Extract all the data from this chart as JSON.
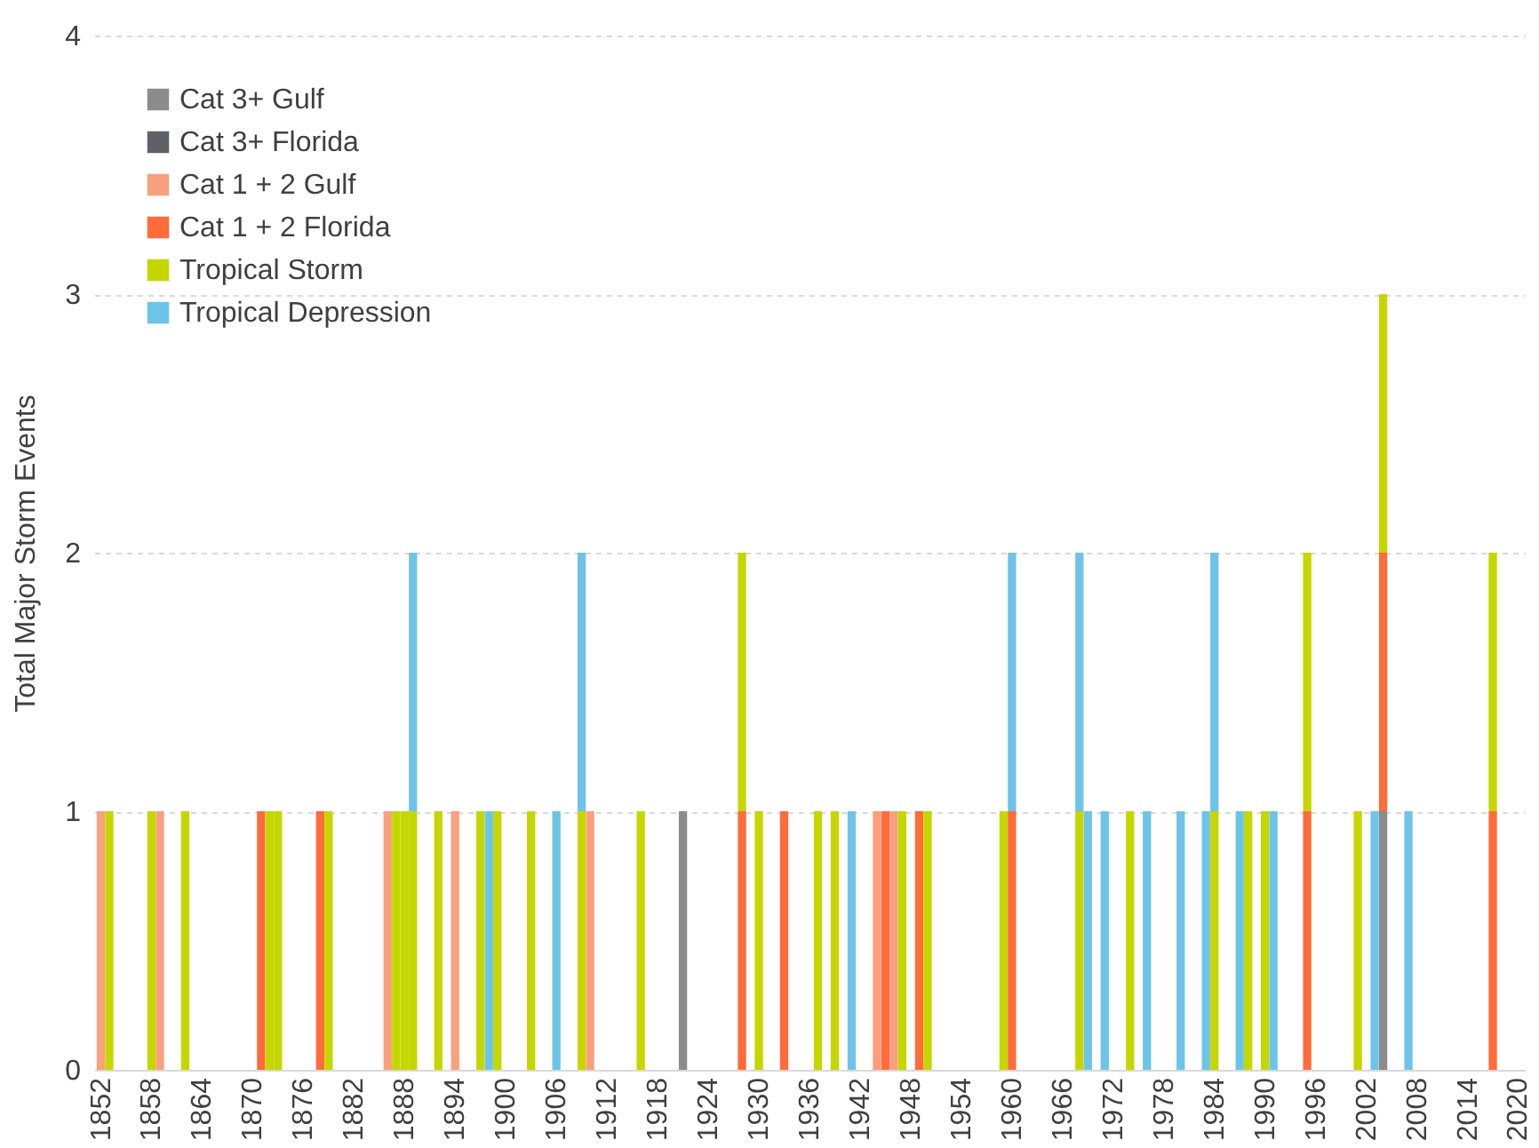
{
  "chart_data": {
    "type": "bar",
    "stacked": true,
    "ylabel": "Total Major Storm Events",
    "ylim": [
      0,
      4
    ],
    "yticks": [
      0,
      1,
      2,
      3,
      4
    ],
    "grid": "y",
    "legend": "top left",
    "categories": [
      "1852",
      null,
      null,
      null,
      null,
      null,
      "1858",
      null,
      null,
      null,
      null,
      null,
      "1864",
      null,
      null,
      null,
      null,
      null,
      "1870",
      null,
      null,
      null,
      null,
      null,
      "1876",
      null,
      null,
      null,
      null,
      null,
      "1882",
      null,
      null,
      null,
      null,
      null,
      "1888",
      null,
      null,
      null,
      null,
      null,
      "1894",
      null,
      null,
      null,
      null,
      null,
      "1900",
      null,
      null,
      null,
      null,
      null,
      "1906",
      null,
      null,
      null,
      null,
      null,
      "1912",
      null,
      null,
      null,
      null,
      null,
      "1918",
      null,
      null,
      null,
      null,
      null,
      "1924",
      null,
      null,
      null,
      null,
      null,
      "1930",
      null,
      null,
      null,
      null,
      null,
      "1936",
      null,
      null,
      null,
      null,
      null,
      "1942",
      null,
      null,
      null,
      null,
      null,
      "1948",
      null,
      null,
      null,
      null,
      null,
      "1954",
      null,
      null,
      null,
      null,
      null,
      "1960",
      null,
      null,
      null,
      null,
      null,
      "1966",
      null,
      null,
      null,
      null,
      null,
      "1972",
      null,
      null,
      null,
      null,
      null,
      "1978",
      null,
      null,
      null,
      null,
      null,
      "1984",
      null,
      null,
      null,
      null,
      null,
      "1990",
      null,
      null,
      null,
      null,
      null,
      "1996",
      null,
      null,
      null,
      null,
      null,
      "2002",
      null,
      null,
      null,
      null,
      null,
      "2008",
      null,
      null,
      null,
      null,
      null,
      "2014",
      null,
      null,
      null,
      null,
      null,
      "2020"
    ],
    "series": [
      {
        "name": "Cat 3+ Gulf",
        "color": "#8c8c8c",
        "values": [
          0,
          0,
          0,
          0,
          0,
          0,
          0,
          0,
          0,
          0,
          0,
          0,
          0,
          0,
          0,
          0,
          0,
          0,
          0,
          0,
          0,
          0,
          0,
          0,
          0,
          0,
          0,
          0,
          0,
          0,
          0,
          0,
          0,
          0,
          0,
          0,
          0,
          0,
          0,
          0,
          0,
          0,
          0,
          0,
          0,
          0,
          0,
          0,
          0,
          0,
          0,
          0,
          0,
          0,
          0,
          0,
          0,
          0,
          0,
          0,
          0,
          0,
          0,
          0,
          0,
          0,
          0,
          0,
          0,
          1,
          0,
          0,
          0,
          0,
          0,
          0,
          0,
          0,
          0,
          0,
          0,
          0,
          0,
          0,
          0,
          0,
          0,
          0,
          0,
          0,
          0,
          0,
          0,
          0,
          0,
          0,
          0,
          0,
          0,
          0,
          0,
          0,
          0,
          0,
          0,
          0,
          0,
          0,
          0,
          0,
          0,
          0,
          0,
          0,
          0,
          0,
          0,
          0,
          0,
          0,
          0,
          0,
          0,
          0,
          0,
          0,
          0,
          0,
          0,
          0,
          0,
          0,
          0,
          0,
          0,
          0,
          0,
          0,
          0,
          0,
          0,
          0,
          0,
          0,
          0,
          0,
          0,
          0,
          0,
          0,
          0,
          0,
          1,
          0,
          0,
          0,
          0,
          0,
          0,
          0,
          0,
          0,
          0,
          0,
          0,
          0,
          0,
          0,
          0
        ]
      },
      {
        "name": "Cat 3+ Florida",
        "color": "#5f6166",
        "values": [
          0,
          0,
          0,
          0,
          0,
          0,
          0,
          0,
          0,
          0,
          0,
          0,
          0,
          0,
          0,
          0,
          0,
          0,
          0,
          0,
          0,
          0,
          0,
          0,
          0,
          0,
          0,
          0,
          0,
          0,
          0,
          0,
          0,
          0,
          0,
          0,
          0,
          0,
          0,
          0,
          0,
          0,
          0,
          0,
          0,
          0,
          0,
          0,
          0,
          0,
          0,
          0,
          0,
          0,
          0,
          0,
          0,
          0,
          0,
          0,
          0,
          0,
          0,
          0,
          0,
          0,
          0,
          0,
          0,
          0,
          0,
          0,
          0,
          0,
          0,
          0,
          0,
          0,
          0,
          0,
          0,
          0,
          0,
          0,
          0,
          0,
          0,
          0,
          0,
          0,
          0,
          0,
          0,
          0,
          0,
          0,
          0,
          0,
          0,
          0,
          0,
          0,
          0,
          0,
          0,
          0,
          0,
          0,
          0,
          0,
          0,
          0,
          0,
          0,
          0,
          0,
          0,
          0,
          0,
          0,
          0,
          0,
          0,
          0,
          0,
          0,
          0,
          0,
          0,
          0,
          0,
          0,
          0,
          0,
          0,
          0,
          0,
          0,
          0,
          0,
          0,
          0,
          0,
          0,
          0,
          0,
          0,
          0,
          0,
          0,
          0,
          0,
          0,
          0,
          0,
          0,
          0,
          0,
          0,
          0,
          0,
          0,
          0,
          0,
          0,
          0,
          0,
          0,
          0
        ]
      },
      {
        "name": "Cat 1 + 2 Gulf",
        "color": "#f9a07e",
        "values": [
          1,
          0,
          0,
          0,
          0,
          0,
          0,
          1,
          0,
          0,
          0,
          0,
          0,
          0,
          0,
          0,
          0,
          0,
          0,
          0,
          0,
          0,
          0,
          0,
          0,
          0,
          0,
          0,
          0,
          0,
          0,
          0,
          0,
          0,
          1,
          0,
          0,
          0,
          0,
          0,
          0,
          0,
          1,
          0,
          0,
          0,
          0,
          0,
          0,
          0,
          0,
          0,
          0,
          0,
          0,
          0,
          0,
          0,
          1,
          0,
          0,
          0,
          0,
          0,
          0,
          0,
          0,
          0,
          0,
          0,
          0,
          0,
          0,
          0,
          0,
          0,
          0,
          0,
          0,
          0,
          0,
          0,
          0,
          0,
          0,
          0,
          0,
          0,
          0,
          0,
          0,
          0,
          1,
          0,
          1,
          0,
          0,
          0,
          0,
          0,
          0,
          0,
          0,
          0,
          0,
          0,
          0,
          0,
          0,
          0,
          0,
          0,
          0,
          0,
          0,
          0,
          0,
          0,
          0,
          0,
          0,
          0,
          0,
          0,
          0,
          0,
          0,
          0,
          0,
          0,
          0,
          0,
          0,
          0,
          0,
          0,
          0,
          0,
          0,
          0,
          0,
          0,
          0,
          0,
          0,
          0,
          0,
          0,
          0,
          0,
          0,
          0,
          0,
          0,
          0,
          0,
          0,
          0,
          0,
          0,
          0,
          0,
          0,
          0,
          0,
          0,
          0,
          0,
          0
        ]
      },
      {
        "name": "Cat 1 + 2 Florida",
        "color": "#ff6b3b",
        "values": [
          0,
          0,
          0,
          0,
          0,
          0,
          0,
          0,
          0,
          0,
          0,
          0,
          0,
          0,
          0,
          0,
          0,
          0,
          0,
          1,
          0,
          0,
          0,
          0,
          0,
          0,
          1,
          0,
          0,
          0,
          0,
          0,
          0,
          0,
          0,
          0,
          0,
          0,
          0,
          0,
          0,
          0,
          0,
          0,
          0,
          0,
          0,
          0,
          0,
          0,
          0,
          0,
          0,
          0,
          0,
          0,
          0,
          0,
          0,
          0,
          0,
          0,
          0,
          0,
          0,
          0,
          0,
          0,
          0,
          0,
          0,
          0,
          0,
          0,
          0,
          0,
          1,
          0,
          0,
          0,
          0,
          1,
          0,
          0,
          0,
          0,
          0,
          0,
          0,
          0,
          0,
          0,
          0,
          1,
          0,
          0,
          0,
          1,
          0,
          0,
          0,
          0,
          0,
          0,
          0,
          0,
          0,
          0,
          1,
          0,
          0,
          0,
          0,
          0,
          0,
          0,
          0,
          0,
          0,
          0,
          0,
          0,
          0,
          0,
          0,
          0,
          0,
          0,
          0,
          0,
          0,
          0,
          0,
          0,
          0,
          0,
          0,
          0,
          0,
          0,
          0,
          0,
          0,
          1,
          0,
          0,
          0,
          0,
          0,
          0,
          0,
          0,
          1,
          0,
          0,
          0,
          0,
          0,
          0,
          0,
          0,
          0,
          0,
          0,
          0,
          1,
          0,
          0,
          0
        ]
      },
      {
        "name": "Tropical Storm",
        "color": "#c5d600",
        "values": [
          0,
          1,
          0,
          0,
          0,
          0,
          1,
          0,
          0,
          0,
          1,
          0,
          0,
          0,
          0,
          0,
          0,
          0,
          0,
          0,
          1,
          1,
          0,
          0,
          0,
          0,
          0,
          1,
          0,
          0,
          0,
          0,
          0,
          0,
          0,
          1,
          1,
          1,
          0,
          0,
          1,
          0,
          0,
          0,
          0,
          1,
          0,
          1,
          0,
          0,
          0,
          1,
          0,
          0,
          0,
          0,
          0,
          1,
          0,
          0,
          0,
          0,
          0,
          0,
          1,
          0,
          0,
          0,
          0,
          0,
          0,
          0,
          0,
          0,
          0,
          0,
          1,
          0,
          1,
          0,
          0,
          0,
          0,
          0,
          0,
          1,
          0,
          1,
          0,
          0,
          0,
          0,
          0,
          0,
          0,
          1,
          0,
          0,
          1,
          0,
          0,
          0,
          0,
          0,
          0,
          0,
          0,
          1,
          0,
          0,
          0,
          0,
          0,
          0,
          0,
          0,
          1,
          0,
          0,
          0,
          0,
          0,
          1,
          0,
          0,
          0,
          0,
          0,
          0,
          0,
          0,
          0,
          1,
          0,
          0,
          0,
          1,
          0,
          1,
          0,
          0,
          0,
          0,
          1,
          0,
          0,
          0,
          0,
          0,
          1,
          0,
          0,
          1,
          0,
          0,
          0,
          0,
          0,
          0,
          0,
          0,
          0,
          0,
          0,
          0,
          1,
          0,
          0,
          0
        ]
      },
      {
        "name": "Tropical Depression",
        "color": "#6ec4e8",
        "values": [
          0,
          0,
          0,
          0,
          0,
          0,
          0,
          0,
          0,
          0,
          0,
          0,
          0,
          0,
          0,
          0,
          0,
          0,
          0,
          0,
          0,
          0,
          0,
          0,
          0,
          0,
          0,
          0,
          0,
          0,
          0,
          0,
          0,
          0,
          0,
          0,
          0,
          1,
          0,
          0,
          0,
          0,
          0,
          0,
          0,
          0,
          1,
          0,
          0,
          0,
          0,
          0,
          0,
          0,
          1,
          0,
          0,
          1,
          0,
          0,
          0,
          0,
          0,
          0,
          0,
          0,
          0,
          0,
          0,
          0,
          0,
          0,
          0,
          0,
          0,
          0,
          0,
          0,
          0,
          0,
          0,
          0,
          0,
          0,
          0,
          0,
          0,
          0,
          0,
          1,
          0,
          0,
          0,
          0,
          0,
          0,
          0,
          0,
          0,
          0,
          0,
          0,
          0,
          0,
          0,
          0,
          0,
          0,
          1,
          0,
          0,
          0,
          0,
          0,
          0,
          0,
          1,
          1,
          0,
          1,
          0,
          0,
          0,
          0,
          1,
          0,
          0,
          0,
          1,
          0,
          0,
          1,
          1,
          0,
          0,
          1,
          0,
          0,
          0,
          1,
          0,
          0,
          0,
          0,
          0,
          0,
          0,
          0,
          0,
          0,
          0,
          1,
          0,
          0,
          0,
          1,
          0,
          0,
          0,
          0,
          0,
          0,
          0,
          0,
          0,
          0,
          0,
          0,
          0
        ]
      }
    ]
  }
}
